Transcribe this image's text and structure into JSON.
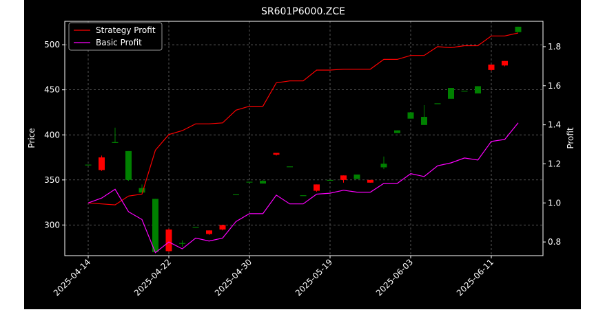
{
  "chart_data": {
    "type": "candlestick+line",
    "title": "SR601P6000.ZCE",
    "ylabel_left": "Price",
    "ylabel_right": "Profit",
    "xlabel": "",
    "ylim_left": [
      266,
      526
    ],
    "ylim_right": [
      0.73,
      1.93
    ],
    "yticks_left": [
      300,
      350,
      400,
      450,
      500
    ],
    "yticks_right": [
      0.8,
      1.0,
      1.2,
      1.4,
      1.6,
      1.8
    ],
    "grid": true,
    "legend_position": "top-left",
    "x_tick_labels": [
      {
        "index": 0,
        "label": "2025-04-14"
      },
      {
        "index": 6,
        "label": "2025-04-22"
      },
      {
        "index": 12,
        "label": "2025-04-30"
      },
      {
        "index": 18,
        "label": "2025-05-19"
      },
      {
        "index": 24,
        "label": "2025-06-03"
      },
      {
        "index": 30,
        "label": "2025-06-11"
      }
    ],
    "candles": [
      {
        "o": 367,
        "c": 367,
        "h": 367,
        "l": 367
      },
      {
        "o": 375,
        "c": 361,
        "h": 377,
        "l": 360
      },
      {
        "o": 392,
        "c": 392,
        "h": 408,
        "l": 391
      },
      {
        "o": 350,
        "c": 382,
        "h": 382,
        "l": 349
      },
      {
        "o": 336,
        "c": 341,
        "h": 345,
        "l": 336
      },
      {
        "o": 270,
        "c": 329,
        "h": 329,
        "l": 270
      },
      {
        "o": 295,
        "c": 271,
        "h": 296,
        "l": 270
      },
      {
        "o": 280,
        "c": 280,
        "h": 283,
        "l": 276
      },
      {
        "o": 298,
        "c": 298,
        "h": 298,
        "l": 298
      },
      {
        "o": 294,
        "c": 290,
        "h": 294,
        "l": 289
      },
      {
        "o": 300,
        "c": 295,
        "h": 300,
        "l": 294
      },
      {
        "o": 334,
        "c": 334,
        "h": 334,
        "l": 334
      },
      {
        "o": 348,
        "c": 348,
        "h": 348,
        "l": 348
      },
      {
        "o": 346,
        "c": 349,
        "h": 350,
        "l": 346
      },
      {
        "o": 380,
        "c": 378,
        "h": 380,
        "l": 377
      },
      {
        "o": 365,
        "c": 365,
        "h": 365,
        "l": 365
      },
      {
        "o": 333,
        "c": 333,
        "h": 333,
        "l": 333
      },
      {
        "o": 345,
        "c": 338,
        "h": 345,
        "l": 337
      },
      {
        "o": 350,
        "c": 350,
        "h": 350,
        "l": 350
      },
      {
        "o": 355,
        "c": 350,
        "h": 355,
        "l": 347
      },
      {
        "o": 351,
        "c": 356,
        "h": 356,
        "l": 351
      },
      {
        "o": 350,
        "c": 347,
        "h": 350,
        "l": 347
      },
      {
        "o": 364,
        "c": 368,
        "h": 376,
        "l": 362
      },
      {
        "o": 402,
        "c": 405,
        "h": 405,
        "l": 402
      },
      {
        "o": 418,
        "c": 425,
        "h": 425,
        "l": 418
      },
      {
        "o": 411,
        "c": 420,
        "h": 433,
        "l": 411
      },
      {
        "o": 435,
        "c": 435,
        "h": 435,
        "l": 435
      },
      {
        "o": 440,
        "c": 452,
        "h": 452,
        "l": 440
      },
      {
        "o": 449,
        "c": 449,
        "h": 449,
        "l": 449
      },
      {
        "o": 446,
        "c": 454,
        "h": 454,
        "l": 446
      },
      {
        "o": 478,
        "c": 472,
        "h": 478,
        "l": 471
      },
      {
        "o": 482,
        "c": 477,
        "h": 482,
        "l": 476
      },
      {
        "o": 514,
        "c": 520,
        "h": 520,
        "l": 514
      }
    ],
    "series": [
      {
        "name": "Strategy Profit",
        "color": "#ff0000",
        "axis": "right",
        "values": [
          1.0,
          0.995,
          0.99,
          1.035,
          1.045,
          1.27,
          1.35,
          1.37,
          1.405,
          1.405,
          1.41,
          1.475,
          1.495,
          1.495,
          1.615,
          1.625,
          1.625,
          1.68,
          1.68,
          1.685,
          1.685,
          1.685,
          1.735,
          1.735,
          1.755,
          1.755,
          1.8,
          1.795,
          1.805,
          1.805,
          1.855,
          1.855,
          1.87
        ]
      },
      {
        "name": "Basic Profit",
        "color": "#ff00ff",
        "axis": "right",
        "values": [
          1.0,
          1.025,
          1.07,
          0.955,
          0.915,
          0.745,
          0.8,
          0.765,
          0.82,
          0.805,
          0.82,
          0.905,
          0.945,
          0.945,
          1.04,
          0.995,
          0.995,
          1.045,
          1.05,
          1.065,
          1.055,
          1.055,
          1.1,
          1.1,
          1.15,
          1.135,
          1.19,
          1.205,
          1.23,
          1.22,
          1.315,
          1.325,
          1.41
        ]
      }
    ]
  }
}
